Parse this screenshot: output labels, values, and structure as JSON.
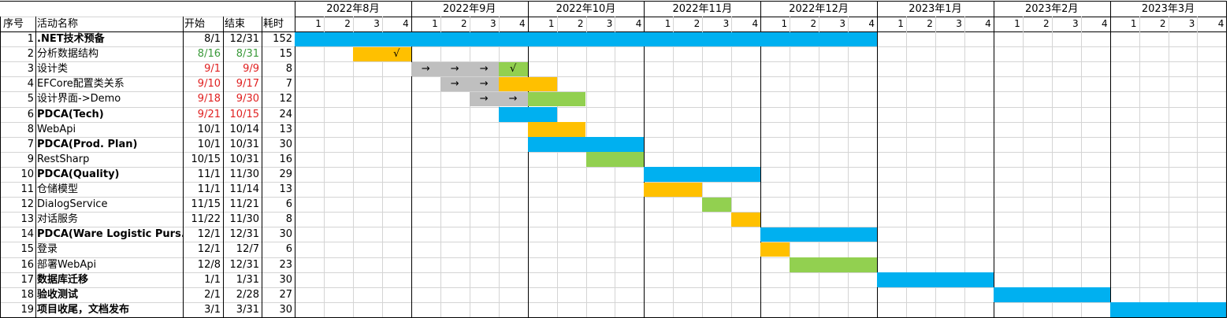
{
  "headers": {
    "idx": "序号",
    "name": "活动名称",
    "start": "开始",
    "end": "结束",
    "duration": "耗时"
  },
  "months": [
    "2022年8月",
    "2022年9月",
    "2022年10月",
    "2022年11月",
    "2022年12月",
    "2023年1月",
    "2023年2月",
    "2023年3月"
  ],
  "week_labels": [
    "1",
    "2",
    "3",
    "4"
  ],
  "colors": {
    "blue": "#00b0f0",
    "orange": "#ffc000",
    "green": "#92d050",
    "gray": "#bfbfbf"
  },
  "rows": [
    {
      "idx": "1",
      "name": ".NET技术预备",
      "start": "8/1",
      "end": "12/31",
      "dur": "152",
      "bold": true,
      "color": "",
      "bars": [
        {
          "from": 0,
          "to": 19,
          "color": "blue"
        }
      ],
      "marks": []
    },
    {
      "idx": "2",
      "name": "分析数据结构",
      "start": "8/16",
      "end": "8/31",
      "dur": "15",
      "bold": false,
      "color": "green",
      "bars": [
        {
          "from": 2,
          "to": 3,
          "color": "orange"
        }
      ],
      "marks": [
        {
          "week": 3,
          "text": "√"
        }
      ]
    },
    {
      "idx": "3",
      "name": "设计类",
      "start": "9/1",
      "end": "9/9",
      "dur": "8",
      "bold": false,
      "color": "red",
      "bars": [
        {
          "from": 4,
          "to": 6,
          "color": "gray"
        },
        {
          "from": 7,
          "to": 7,
          "color": "green"
        }
      ],
      "marks": [
        {
          "week": 4,
          "text": "→"
        },
        {
          "week": 5,
          "text": "→"
        },
        {
          "week": 6,
          "text": "→"
        },
        {
          "week": 7,
          "text": "√"
        }
      ]
    },
    {
      "idx": "4",
      "name": "EFCore配置类关系",
      "start": "9/10",
      "end": "9/17",
      "dur": "7",
      "bold": false,
      "color": "red",
      "bars": [
        {
          "from": 5,
          "to": 6,
          "color": "gray"
        },
        {
          "from": 7,
          "to": 8,
          "color": "orange"
        }
      ],
      "marks": [
        {
          "week": 5,
          "text": "→"
        },
        {
          "week": 6,
          "text": "→"
        }
      ]
    },
    {
      "idx": "5",
      "name": "设计界面->Demo",
      "start": "9/18",
      "end": "9/30",
      "dur": "12",
      "bold": false,
      "color": "red",
      "bars": [
        {
          "from": 6,
          "to": 7,
          "color": "gray"
        },
        {
          "from": 8,
          "to": 9,
          "color": "green"
        }
      ],
      "marks": [
        {
          "week": 6,
          "text": "→"
        },
        {
          "week": 7,
          "text": "→"
        }
      ]
    },
    {
      "idx": "6",
      "name": "PDCA(Tech)",
      "start": "9/21",
      "end": "10/15",
      "dur": "24",
      "bold": true,
      "color": "red",
      "bars": [
        {
          "from": 7,
          "to": 8,
          "color": "blue"
        }
      ],
      "marks": []
    },
    {
      "idx": "8",
      "name": "WebApi",
      "start": "10/1",
      "end": "10/14",
      "dur": "13",
      "bold": false,
      "color": "",
      "bars": [
        {
          "from": 8,
          "to": 9,
          "color": "orange"
        }
      ],
      "marks": []
    },
    {
      "idx": "7",
      "name": "PDCA(Prod. Plan)",
      "start": "10/1",
      "end": "10/31",
      "dur": "30",
      "bold": true,
      "color": "",
      "bars": [
        {
          "from": 8,
          "to": 11,
          "color": "blue"
        }
      ],
      "marks": []
    },
    {
      "idx": "9",
      "name": "RestSharp",
      "start": "10/15",
      "end": "10/31",
      "dur": "16",
      "bold": false,
      "color": "",
      "bars": [
        {
          "from": 10,
          "to": 11,
          "color": "green"
        }
      ],
      "marks": []
    },
    {
      "idx": "10",
      "name": "PDCA(Quality)",
      "start": "11/1",
      "end": "11/30",
      "dur": "29",
      "bold": true,
      "color": "",
      "bars": [
        {
          "from": 12,
          "to": 15,
          "color": "blue"
        }
      ],
      "marks": []
    },
    {
      "idx": "11",
      "name": "仓储模型",
      "start": "11/1",
      "end": "11/14",
      "dur": "13",
      "bold": false,
      "color": "",
      "bars": [
        {
          "from": 12,
          "to": 13,
          "color": "orange"
        }
      ],
      "marks": []
    },
    {
      "idx": "12",
      "name": "DialogService",
      "start": "11/15",
      "end": "11/21",
      "dur": "6",
      "bold": false,
      "color": "",
      "bars": [
        {
          "from": 14,
          "to": 14,
          "color": "green"
        }
      ],
      "marks": []
    },
    {
      "idx": "13",
      "name": "对话服务",
      "start": "11/22",
      "end": "11/30",
      "dur": "8",
      "bold": false,
      "color": "",
      "bars": [
        {
          "from": 15,
          "to": 15,
          "color": "orange"
        }
      ],
      "marks": []
    },
    {
      "idx": "14",
      "name": "PDCA(Ware Logistic Purs.)",
      "start": "12/1",
      "end": "12/31",
      "dur": "30",
      "bold": true,
      "color": "",
      "bars": [
        {
          "from": 16,
          "to": 19,
          "color": "blue"
        }
      ],
      "marks": []
    },
    {
      "idx": "15",
      "name": "登录",
      "start": "12/1",
      "end": "12/7",
      "dur": "6",
      "bold": false,
      "color": "",
      "bars": [
        {
          "from": 16,
          "to": 16,
          "color": "orange"
        }
      ],
      "marks": []
    },
    {
      "idx": "16",
      "name": "部署WebApi",
      "start": "12/8",
      "end": "12/31",
      "dur": "23",
      "bold": false,
      "color": "",
      "bars": [
        {
          "from": 17,
          "to": 19,
          "color": "green"
        }
      ],
      "marks": []
    },
    {
      "idx": "17",
      "name": "数据库迁移",
      "start": "1/1",
      "end": "1/31",
      "dur": "30",
      "bold": true,
      "color": "",
      "bars": [
        {
          "from": 20,
          "to": 23,
          "color": "blue"
        }
      ],
      "marks": []
    },
    {
      "idx": "18",
      "name": "验收测试",
      "start": "2/1",
      "end": "2/28",
      "dur": "27",
      "bold": true,
      "color": "",
      "bars": [
        {
          "from": 24,
          "to": 27,
          "color": "blue"
        }
      ],
      "marks": []
    },
    {
      "idx": "19",
      "name": "项目收尾，文档发布",
      "start": "3/1",
      "end": "3/31",
      "dur": "30",
      "bold": true,
      "color": "",
      "bars": [
        {
          "from": 28,
          "to": 31,
          "color": "blue"
        }
      ],
      "marks": []
    }
  ]
}
